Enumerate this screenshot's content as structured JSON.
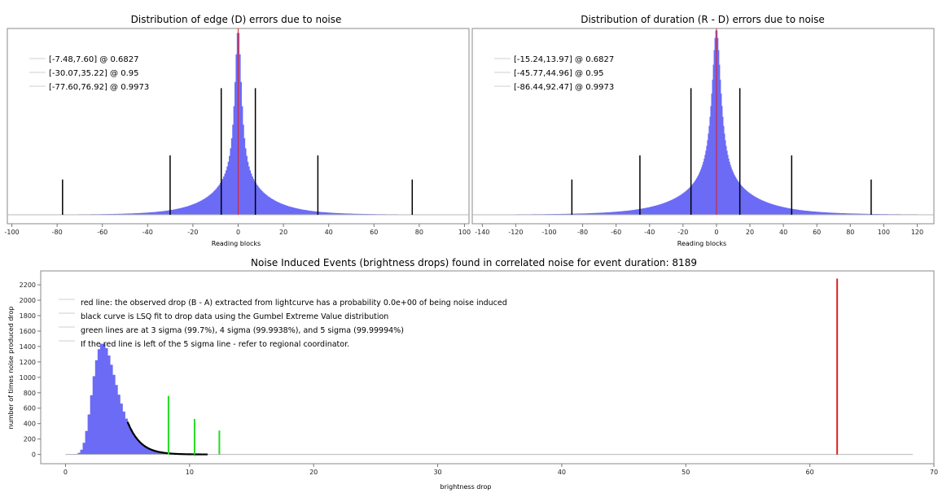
{
  "chart_data": [
    {
      "type": "histogram",
      "title": "Distribution of edge (D) errors due to noise",
      "xlabel": "Reading blocks",
      "ylabel": "",
      "xlim": [
        -102,
        102
      ],
      "xticks": [
        -100,
        -80,
        -60,
        -40,
        -20,
        0,
        20,
        40,
        60,
        80,
        100
      ],
      "show_y_ticks": false,
      "histogram": {
        "center": 0,
        "peak": 1.0,
        "core_width": 1.7,
        "tail_width": 12
      },
      "center_line": {
        "x": 0,
        "color": "#e02020"
      },
      "interval_lines": [
        {
          "lo": -7.48,
          "hi": 7.6,
          "height": 0.6827
        },
        {
          "lo": -30.07,
          "hi": 35.22,
          "height": 0.32
        },
        {
          "lo": -77.6,
          "hi": 76.92,
          "height": 0.19
        }
      ],
      "legend": [
        "[-7.48,7.60] @ 0.6827",
        "[-30.07,35.22] @ 0.95",
        "[-77.60,76.92] @ 0.9973"
      ],
      "legend_position": "top-left",
      "colors": {
        "bars": "#6b6bf5",
        "interval": "#000000"
      }
    },
    {
      "type": "histogram",
      "title": "Distribution of duration (R - D) errors due to noise",
      "xlabel": "Reading blocks",
      "ylabel": "",
      "xlim": [
        -146,
        130
      ],
      "xticks": [
        -140,
        -120,
        -100,
        -80,
        -60,
        -40,
        -20,
        0,
        20,
        40,
        60,
        80,
        100,
        120
      ],
      "show_y_ticks": false,
      "histogram": {
        "center": 0,
        "peak": 1.0,
        "core_width": 3.2,
        "tail_width": 20
      },
      "center_line": {
        "x": 0,
        "color": "#e02020"
      },
      "interval_lines": [
        {
          "lo": -15.24,
          "hi": 13.97,
          "height": 0.6827
        },
        {
          "lo": -45.77,
          "hi": 44.96,
          "height": 0.32
        },
        {
          "lo": -86.44,
          "hi": 92.47,
          "height": 0.19
        }
      ],
      "legend": [
        "[-15.24,13.97] @ 0.6827",
        "[-45.77,44.96] @ 0.95",
        "[-86.44,92.47] @ 0.9973"
      ],
      "legend_position": "top-left",
      "colors": {
        "bars": "#6b6bf5",
        "interval": "#000000"
      }
    },
    {
      "type": "histogram",
      "title": "Noise Induced Events (brightness drops) found in correlated noise for event duration: 8189",
      "xlabel": "brightness drop",
      "ylabel": "number of times noise produced drop",
      "xlim": [
        -2,
        70
      ],
      "ylim": [
        -120,
        2380
      ],
      "xticks": [
        0,
        10,
        20,
        30,
        40,
        50,
        60,
        70
      ],
      "yticks": [
        0,
        200,
        400,
        600,
        800,
        1000,
        1200,
        1400,
        1600,
        1800,
        2000,
        2200
      ],
      "histogram": {
        "mode": 3.0,
        "peak": 1440,
        "scale": 0.95,
        "range": [
          0,
          11.5
        ]
      },
      "fit_curve": {
        "from": 5.0,
        "to": 11.5,
        "color": "#000000"
      },
      "observed_drop": {
        "x": 62.2,
        "height": 2280,
        "color": "#dd2020"
      },
      "sigma_lines": [
        {
          "x": 8.3,
          "height": 760
        },
        {
          "x": 10.4,
          "height": 460
        },
        {
          "x": 12.4,
          "height": 310
        }
      ],
      "baseline_to": 68.3,
      "legend": [
        "red line: the observed drop (B - A) extracted from lightcurve has a probability 0.0e+00 of being noise induced",
        "black curve is LSQ fit to drop data using the Gumbel Extreme Value distribution",
        "green lines are at 3 sigma (99.7%), 4 sigma (99.9938%), and 5 sigma (99.99994%)",
        "If the red line is left of the 5 sigma line - refer to regional coordinator."
      ],
      "legend_position": "top-left",
      "colors": {
        "bars": "#6b6bf5",
        "sigma": "#22dd22",
        "observed": "#dd2020"
      }
    }
  ]
}
